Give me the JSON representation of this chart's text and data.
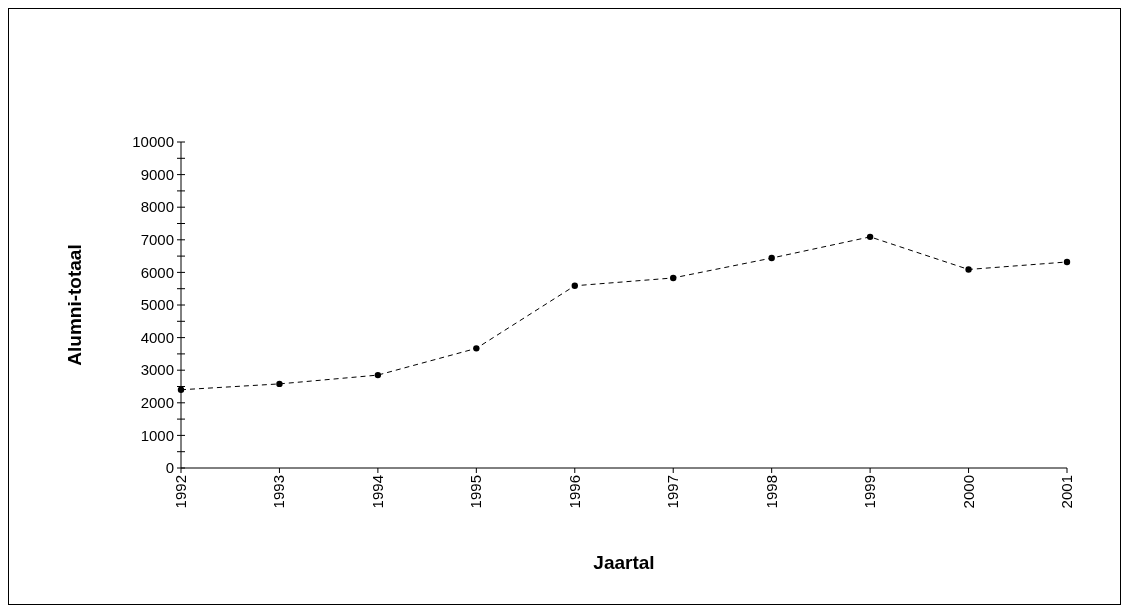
{
  "chart_data": {
    "type": "line",
    "xlabel": "Jaartal",
    "ylabel": "Alumni-totaal",
    "categories": [
      "1992",
      "1993",
      "1994",
      "1995",
      "1996",
      "1997",
      "1998",
      "1999",
      "2000",
      "2001"
    ],
    "series": [
      {
        "color": "#000000",
        "values": [
          2400,
          2580,
          2850,
          3670,
          5590,
          5830,
          6440,
          7090,
          6090,
          6320
        ]
      }
    ],
    "ylim": [
      0,
      10000
    ],
    "yticks": [
      0,
      {
        "value": 500,
        "label": null
      },
      1000,
      {
        "value": 1500,
        "label": null
      },
      2000,
      {
        "value": 2500,
        "label": null
      },
      3000,
      {
        "value": 3500,
        "label": null
      },
      4000,
      {
        "value": 4500,
        "label": null
      },
      5000,
      {
        "value": 5500,
        "label": null
      },
      6000,
      {
        "value": 6500,
        "label": null
      },
      7000,
      {
        "value": 7500,
        "label": null
      },
      8000,
      {
        "value": 8500,
        "label": null
      },
      9000,
      {
        "value": 9500,
        "label": null
      },
      10000
    ],
    "marker": "circle",
    "line_style": "dashed",
    "grid": false
  }
}
